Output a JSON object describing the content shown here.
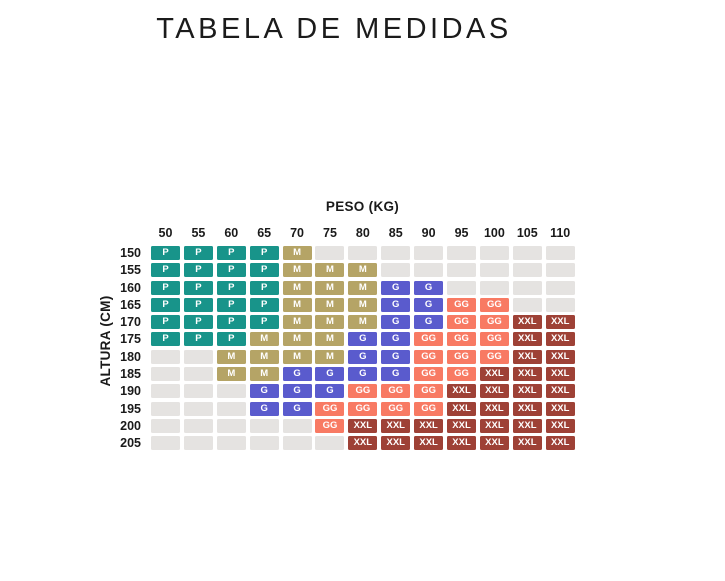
{
  "page": {
    "title": "TABELA DE MEDIDAS"
  },
  "chart_data": {
    "type": "heatmap",
    "title": "TABELA DE MEDIDAS",
    "xlabel": "PESO (KG)",
    "ylabel": "ALTURA (CM)",
    "x_ticks": [
      "50",
      "55",
      "60",
      "65",
      "70",
      "75",
      "80",
      "85",
      "90",
      "95",
      "100",
      "105",
      "110"
    ],
    "y_ticks": [
      "150",
      "155",
      "160",
      "165",
      "170",
      "175",
      "180",
      "185",
      "190",
      "195",
      "200",
      "205"
    ],
    "sizes": [
      "P",
      "M",
      "G",
      "GG",
      "XXL"
    ],
    "cells": [
      [
        "P",
        "P",
        "P",
        "P",
        "M",
        "",
        "",
        "",
        "",
        "",
        "",
        "",
        ""
      ],
      [
        "P",
        "P",
        "P",
        "P",
        "M",
        "M",
        "M",
        "",
        "",
        "",
        "",
        "",
        ""
      ],
      [
        "P",
        "P",
        "P",
        "P",
        "M",
        "M",
        "M",
        "G",
        "G",
        "",
        "",
        "",
        ""
      ],
      [
        "P",
        "P",
        "P",
        "P",
        "M",
        "M",
        "M",
        "G",
        "G",
        "GG",
        "GG",
        "",
        ""
      ],
      [
        "P",
        "P",
        "P",
        "P",
        "M",
        "M",
        "M",
        "G",
        "G",
        "GG",
        "GG",
        "XXL",
        "XXL"
      ],
      [
        "P",
        "P",
        "P",
        "M",
        "M",
        "M",
        "G",
        "G",
        "GG",
        "GG",
        "GG",
        "XXL",
        "XXL"
      ],
      [
        "",
        "",
        "M",
        "M",
        "M",
        "M",
        "G",
        "G",
        "GG",
        "GG",
        "GG",
        "XXL",
        "XXL"
      ],
      [
        "",
        "",
        "M",
        "M",
        "G",
        "G",
        "G",
        "G",
        "GG",
        "GG",
        "XXL",
        "XXL",
        "XXL"
      ],
      [
        "",
        "",
        "",
        "G",
        "G",
        "G",
        "GG",
        "GG",
        "GG",
        "XXL",
        "XXL",
        "XXL",
        "XXL"
      ],
      [
        "",
        "",
        "",
        "G",
        "G",
        "GG",
        "GG",
        "GG",
        "GG",
        "XXL",
        "XXL",
        "XXL",
        "XXL"
      ],
      [
        "",
        "",
        "",
        "",
        "",
        "GG",
        "XXL",
        "XXL",
        "XXL",
        "XXL",
        "XXL",
        "XXL",
        "XXL"
      ],
      [
        "",
        "",
        "",
        "",
        "",
        "",
        "XXL",
        "XXL",
        "XXL",
        "XXL",
        "XXL",
        "XXL",
        "XXL"
      ]
    ],
    "colors": {
      "P": "#18948a",
      "M": "#b5a466",
      "G": "#5a5bcd",
      "GG": "#f87a63",
      "XXL": "#9e4136",
      "empty": "#e5e3e1",
      "label_text": "#1a1a1a",
      "cell_text": "#ffffff"
    },
    "layout": {
      "grid": "off",
      "legend": "none",
      "x_axis_position": "top",
      "y_axis_position": "left"
    }
  }
}
